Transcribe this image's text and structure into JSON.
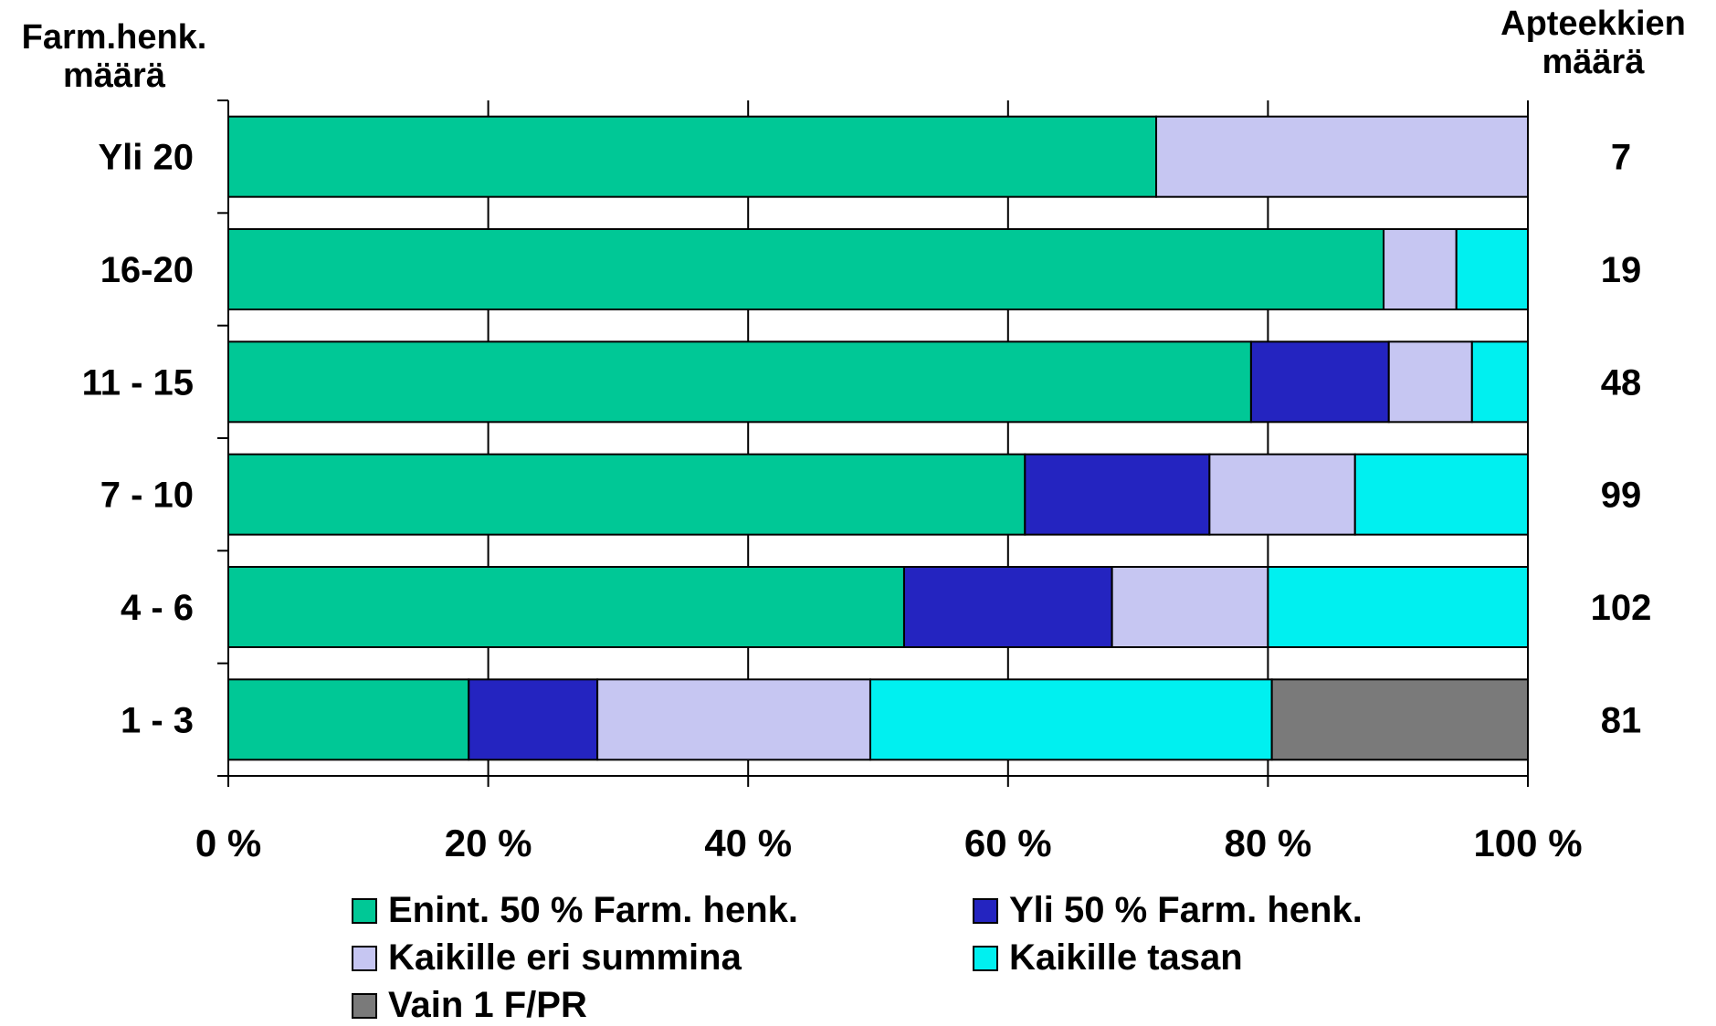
{
  "chart_data": {
    "type": "bar",
    "orientation": "horizontal",
    "stacked": "percent",
    "left_header": [
      "Farm.henk.",
      "määrä"
    ],
    "right_header": [
      "Apteekkien",
      "määrä"
    ],
    "categories": [
      "Yli 20",
      "16-20",
      "11 - 15",
      "7 - 10",
      "4 - 6",
      "1 - 3"
    ],
    "counts": [
      "7",
      "19",
      "48",
      "99",
      "102",
      "81"
    ],
    "xlim": [
      0,
      100
    ],
    "x_ticks": [
      "0 %",
      "20 %",
      "40 %",
      "60 %",
      "80 %",
      "100 %"
    ],
    "grid": "vertical",
    "legend_position": "bottom",
    "series": [
      {
        "name": "Enint. 50 % Farm. henk.",
        "color": "#00c896",
        "values": [
          71.4,
          88.9,
          78.7,
          61.3,
          52.0,
          18.5
        ]
      },
      {
        "name": "Yli 50 % Farm. henk.",
        "color": "#2424c0",
        "values": [
          0,
          0,
          10.6,
          14.2,
          16.0,
          9.9
        ]
      },
      {
        "name": "Kaikille eri summina",
        "color": "#c6c6f2",
        "values": [
          28.6,
          5.6,
          6.4,
          11.2,
          12.0,
          21.0
        ]
      },
      {
        "name": "Kaikille tasan",
        "color": "#00f0f0",
        "values": [
          0,
          5.5,
          4.3,
          13.3,
          20.0,
          30.9
        ]
      },
      {
        "name": "Vain 1 F/PR",
        "color": "#7a7a7a",
        "values": [
          0,
          0,
          0,
          0,
          0,
          19.7
        ]
      }
    ]
  }
}
